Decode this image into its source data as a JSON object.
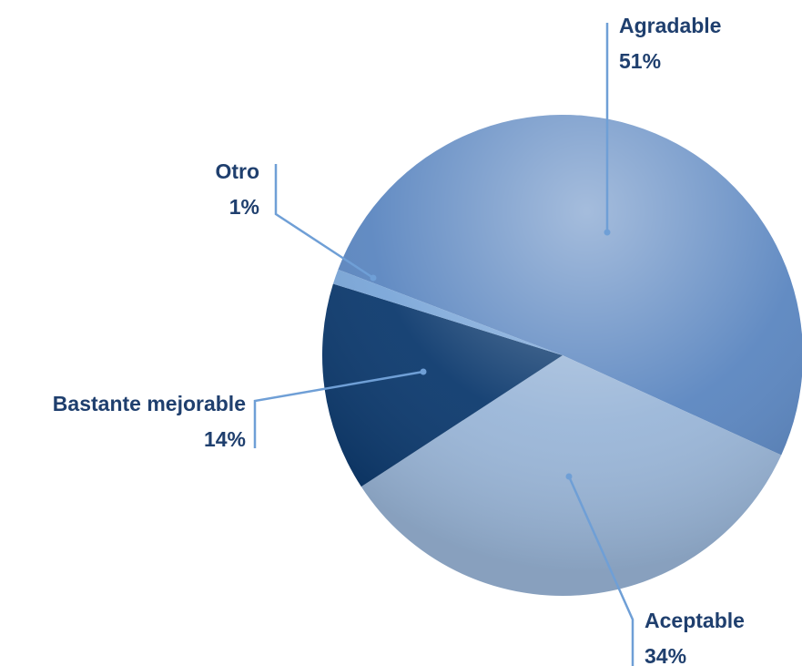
{
  "chart_data": {
    "type": "pie",
    "categories": [
      "Agradable",
      "Aceptable",
      "Bastante mejorable",
      "Otro"
    ],
    "values": [
      51,
      34,
      14,
      1
    ],
    "value_labels": [
      "51%",
      "34%",
      "14%",
      "1%"
    ],
    "colors": [
      "#5b86c0",
      "#9ab6d8",
      "#0d3a6e",
      "#7aa6d8"
    ]
  }
}
